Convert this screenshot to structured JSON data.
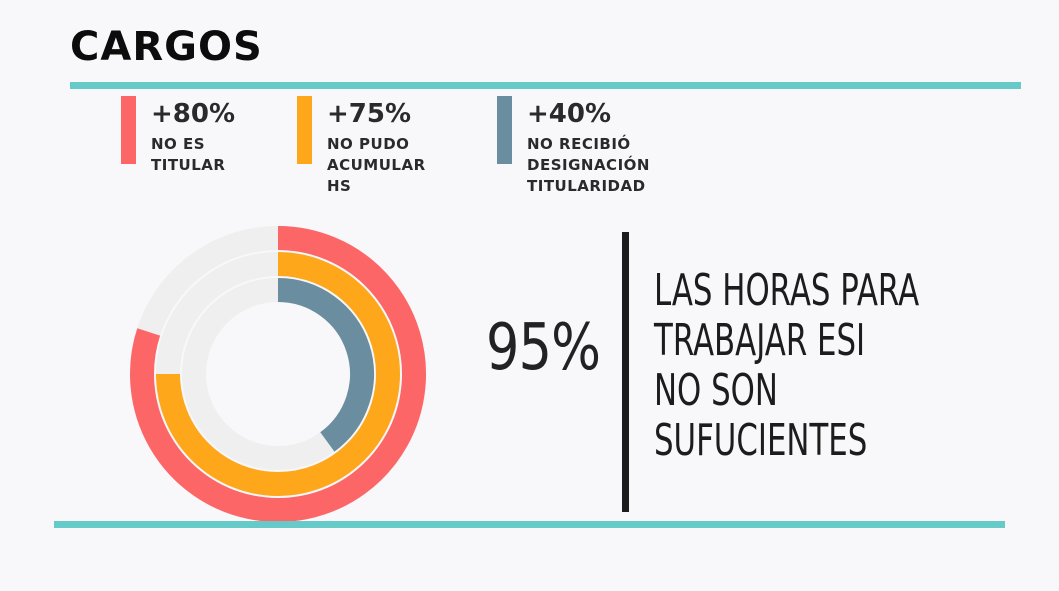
{
  "title": "CARGOS",
  "colors": {
    "accent_rule": "#66cbc8",
    "track": "#efefef"
  },
  "chart_data": {
    "type": "donut",
    "series": [
      {
        "value": 80,
        "label": "+80%",
        "description": [
          "NO ES",
          "TITULAR"
        ],
        "color": "#fd6667"
      },
      {
        "value": 75,
        "label": "+75%",
        "description": [
          "NO PUDO",
          "ACUMULAR",
          "HS"
        ],
        "color": "#fea71b"
      },
      {
        "value": 40,
        "label": "+40%",
        "description": [
          "NO RECIBIÓ",
          "DESIGNACIÓN",
          "TITULARIDAD"
        ],
        "color": "#6a8d9f"
      }
    ]
  },
  "highlight": {
    "value": "95%",
    "statement": [
      "LAS HORAS PARA",
      "TRABAJAR ESI",
      "NO SON",
      "SUFUCIENTES"
    ]
  }
}
